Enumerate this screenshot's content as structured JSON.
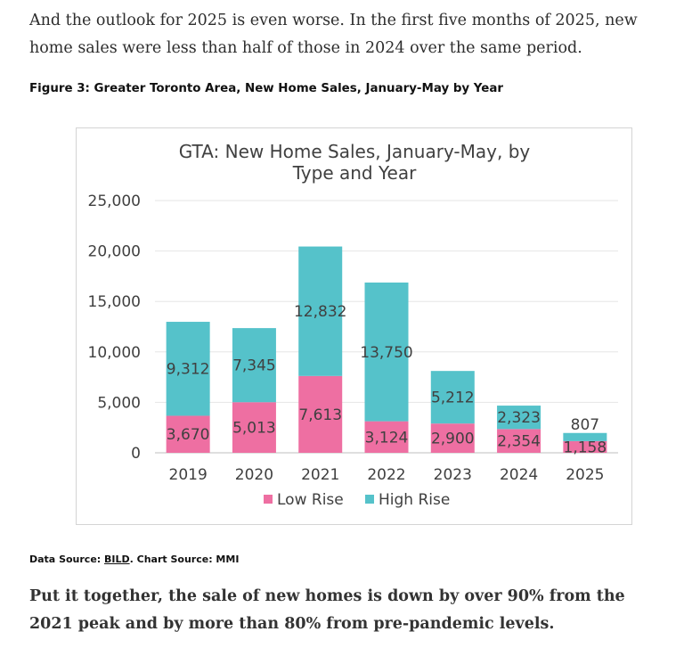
{
  "article": {
    "intro": "And the outlook for 2025 is even worse. In the first five months of 2025, new home sales were less than half of those in 2024 over the same period.",
    "figure_caption": "Figure 3: Greater Toronto Area, New Home Sales, January-May by Year",
    "source_prefix": "Data Source: ",
    "source_link": "BILD",
    "source_suffix": ". Chart Source: MMI",
    "conclusion": "Put it together, the sale of new homes is down by over 90% from the 2021 peak and by more than 80% from pre-pandemic levels."
  },
  "chart_data": {
    "type": "bar",
    "stacked": true,
    "title_lines": [
      "GTA: New Home Sales, January-May, by",
      "Type and Year"
    ],
    "categories": [
      "2019",
      "2020",
      "2021",
      "2022",
      "2023",
      "2024",
      "2025"
    ],
    "series": [
      {
        "name": "Low Rise",
        "color": "#ee6fa2",
        "values": [
          3670,
          5013,
          7613,
          3124,
          2900,
          2354,
          1158
        ]
      },
      {
        "name": "High Rise",
        "color": "#55c2ca",
        "values": [
          9312,
          7345,
          12832,
          13750,
          5212,
          2323,
          807
        ]
      }
    ],
    "data_labels": {
      "Low Rise": [
        "3,670",
        "5,013",
        "7,613",
        "3,124",
        "2,900",
        "2,354",
        "1,158"
      ],
      "High Rise": [
        "9,312",
        "7,345",
        "12,832",
        "13,750",
        "5,212",
        "2,323",
        "807"
      ]
    },
    "ylim": [
      0,
      25000
    ],
    "yticks": [
      0,
      5000,
      10000,
      15000,
      20000,
      25000
    ],
    "ytick_labels": [
      "0",
      "5,000",
      "10,000",
      "15,000",
      "20,000",
      "25,000"
    ],
    "grid": true,
    "legend_position": "bottom",
    "colors": {
      "grid": "#e6e6e6",
      "axis": "#bfbfbf",
      "text": "#404040"
    }
  }
}
